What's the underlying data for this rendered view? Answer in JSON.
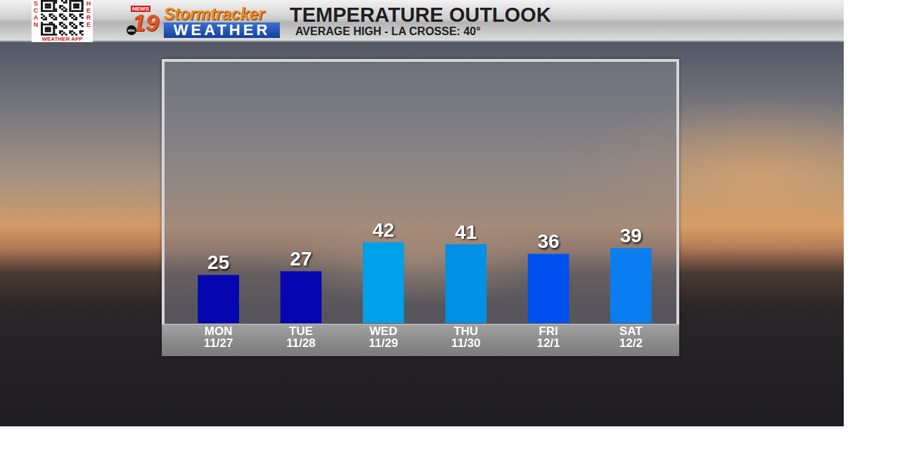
{
  "header": {
    "qr": {
      "left": "SCAN",
      "right": "HERE",
      "caption": "WEATHER APP"
    },
    "logo": {
      "news": "NEWS",
      "number": "19",
      "network": "abc",
      "brand": "Stormtracker",
      "brand_sub": "WEATHER"
    }
  },
  "chart_data": {
    "type": "bar",
    "title": "TEMPERATURE OUTLOOK",
    "subtitle": "AVERAGE HIGH - LA CROSSE: 40°",
    "categories": [
      [
        "MON",
        "11/27"
      ],
      [
        "TUE",
        "11/28"
      ],
      [
        "WED",
        "11/29"
      ],
      [
        "THU",
        "11/30"
      ],
      [
        "FRI",
        "12/1"
      ],
      [
        "SAT",
        "12/2"
      ]
    ],
    "values": [
      25,
      27,
      42,
      41,
      36,
      39
    ],
    "colors": [
      "#0606b0",
      "#0606b0",
      "#00a0e8",
      "#0090e6",
      "#0050f0",
      "#0a7ef0"
    ],
    "ylim": [
      0,
      136
    ],
    "grid": false,
    "data_labels": true,
    "tick_labels": "x"
  }
}
